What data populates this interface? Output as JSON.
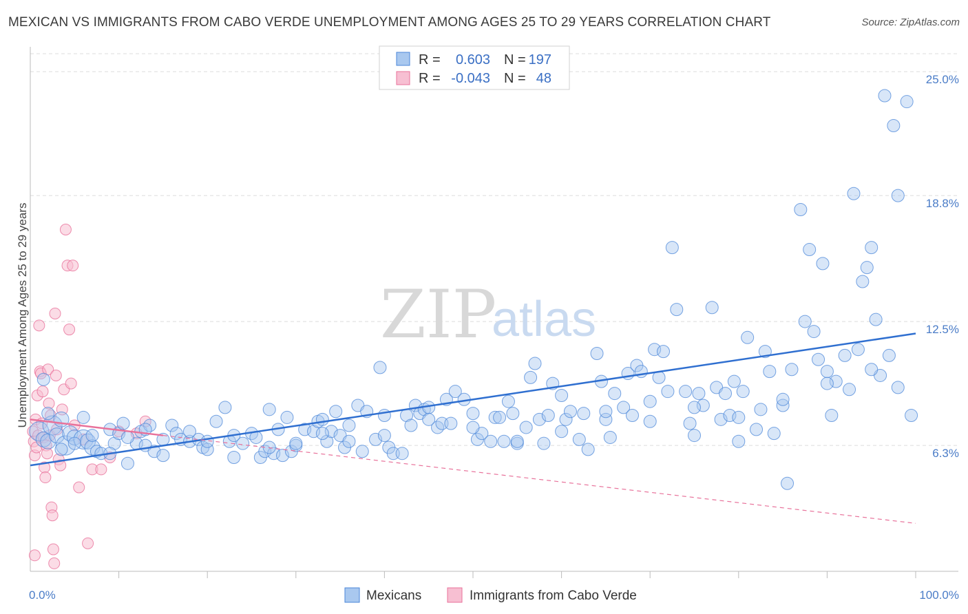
{
  "title": "MEXICAN VS IMMIGRANTS FROM CABO VERDE UNEMPLOYMENT AMONG AGES 25 TO 29 YEARS CORRELATION CHART",
  "source": "Source: ZipAtlas.com",
  "watermark": {
    "zip": "ZIP",
    "atlas": "atlas"
  },
  "colors": {
    "blue": "#4a86d8",
    "blue_fill": "#a9c8ef",
    "pink": "#e8719a",
    "pink_fill": "#f7bfd2",
    "tick_text": "#4a7cc7",
    "grid": "#d9d9d9"
  },
  "legend": {
    "rows": [
      {
        "r_label": "R =",
        "r_value": "0.603",
        "n_label": "N =",
        "n_value": "197"
      },
      {
        "r_label": "R =",
        "r_value": "-0.043",
        "n_label": "N =",
        "n_value": "48"
      }
    ]
  },
  "chart_data": {
    "type": "scatter",
    "title": "MEXICAN VS IMMIGRANTS FROM CABO VERDE UNEMPLOYMENT AMONG AGES 25 TO 29 YEARS CORRELATION CHART",
    "xlabel": "",
    "ylabel": "Unemployment Among Ages 25 to 29 years",
    "xlim": [
      0,
      100
    ],
    "ylim": [
      0,
      25.9
    ],
    "x_tick_labels": [
      "0.0%",
      "100.0%"
    ],
    "y_ticks": [
      6.3,
      12.5,
      18.8,
      25.0
    ],
    "y_tick_labels": [
      "6.3%",
      "12.5%",
      "18.8%",
      "25.0%"
    ],
    "grid": true,
    "legend_position": "top-center",
    "series": [
      {
        "name": "Mexicans",
        "color": "#4a86d8",
        "r": 0.603,
        "n": 197,
        "trend": {
          "x0": 0,
          "y0": 5.3,
          "x1": 100,
          "y1": 11.9
        },
        "points": [
          [
            1,
            7.0
          ],
          [
            1.5,
            6.6
          ],
          [
            2,
            6.5
          ],
          [
            2.5,
            7.3
          ],
          [
            3,
            6.8
          ],
          [
            3.5,
            7.6
          ],
          [
            4,
            6.3
          ],
          [
            4.5,
            6.9
          ],
          [
            5,
            6.7
          ],
          [
            6,
            6.6
          ],
          [
            6.5,
            6.5
          ],
          [
            7,
            6.2
          ],
          [
            7.5,
            6.0
          ],
          [
            8,
            5.9
          ],
          [
            9,
            7.1
          ],
          [
            9.5,
            6.4
          ],
          [
            10,
            6.9
          ],
          [
            10.5,
            7.4
          ],
          [
            11,
            5.4
          ],
          [
            12,
            6.4
          ],
          [
            12.5,
            7.0
          ],
          [
            13,
            6.3
          ],
          [
            13.5,
            7.3
          ],
          [
            14,
            6.0
          ],
          [
            15,
            6.6
          ],
          [
            16,
            7.3
          ],
          [
            16.5,
            6.9
          ],
          [
            17,
            6.6
          ],
          [
            18,
            6.5
          ],
          [
            19,
            6.6
          ],
          [
            19.5,
            6.2
          ],
          [
            20,
            6.1
          ],
          [
            21,
            7.5
          ],
          [
            22,
            8.2
          ],
          [
            22.5,
            6.5
          ],
          [
            23,
            5.7
          ],
          [
            24,
            6.4
          ],
          [
            25,
            6.9
          ],
          [
            25.5,
            6.7
          ],
          [
            26,
            5.7
          ],
          [
            26.5,
            6.0
          ],
          [
            27,
            8.1
          ],
          [
            27.5,
            5.9
          ],
          [
            28,
            7.1
          ],
          [
            28.5,
            5.8
          ],
          [
            29,
            7.7
          ],
          [
            29.5,
            6.0
          ],
          [
            30,
            6.3
          ],
          [
            31,
            7.1
          ],
          [
            32,
            7.0
          ],
          [
            32.5,
            7.5
          ],
          [
            33,
            7.6
          ],
          [
            33.5,
            6.5
          ],
          [
            34,
            7.0
          ],
          [
            34.5,
            8.0
          ],
          [
            35,
            6.8
          ],
          [
            35.5,
            6.2
          ],
          [
            36,
            6.5
          ],
          [
            37,
            8.3
          ],
          [
            37.5,
            6.0
          ],
          [
            38,
            8.0
          ],
          [
            39,
            6.6
          ],
          [
            39.5,
            10.2
          ],
          [
            40,
            7.8
          ],
          [
            40.5,
            6.2
          ],
          [
            41,
            5.9
          ],
          [
            42,
            5.9
          ],
          [
            42.5,
            7.8
          ],
          [
            43,
            7.3
          ],
          [
            43.5,
            8.3
          ],
          [
            44,
            7.9
          ],
          [
            44.5,
            8.1
          ],
          [
            45,
            8.2
          ],
          [
            46,
            7.2
          ],
          [
            46.5,
            7.4
          ],
          [
            47,
            8.6
          ],
          [
            47.5,
            7.4
          ],
          [
            48,
            9.0
          ],
          [
            49,
            8.6
          ],
          [
            50,
            7.9
          ],
          [
            50.5,
            6.6
          ],
          [
            51,
            6.9
          ],
          [
            52,
            6.5
          ],
          [
            52.5,
            7.7
          ],
          [
            53,
            7.7
          ],
          [
            53.5,
            6.5
          ],
          [
            54,
            8.5
          ],
          [
            54.5,
            7.9
          ],
          [
            55,
            6.4
          ],
          [
            56,
            7.2
          ],
          [
            56.5,
            9.7
          ],
          [
            57,
            10.4
          ],
          [
            57.5,
            7.6
          ],
          [
            58,
            6.4
          ],
          [
            58.5,
            7.8
          ],
          [
            59,
            9.4
          ],
          [
            60,
            8.8
          ],
          [
            60.5,
            7.6
          ],
          [
            61,
            8.0
          ],
          [
            62,
            6.6
          ],
          [
            62.5,
            7.9
          ],
          [
            63,
            6.1
          ],
          [
            64,
            10.9
          ],
          [
            64.5,
            9.5
          ],
          [
            65,
            7.6
          ],
          [
            65.5,
            6.7
          ],
          [
            66,
            8.9
          ],
          [
            67,
            8.2
          ],
          [
            67.5,
            9.9
          ],
          [
            68,
            7.8
          ],
          [
            68.5,
            10.3
          ],
          [
            69,
            10.0
          ],
          [
            70,
            8.5
          ],
          [
            70.5,
            11.1
          ],
          [
            71,
            9.7
          ],
          [
            71.5,
            11.0
          ],
          [
            72,
            9.0
          ],
          [
            72.5,
            16.2
          ],
          [
            73,
            13.1
          ],
          [
            74,
            9.0
          ],
          [
            74.5,
            7.4
          ],
          [
            75,
            6.8
          ],
          [
            75.5,
            8.9
          ],
          [
            76,
            8.3
          ],
          [
            77,
            13.2
          ],
          [
            77.5,
            9.2
          ],
          [
            78,
            7.6
          ],
          [
            78.5,
            8.9
          ],
          [
            79,
            7.8
          ],
          [
            79.5,
            9.5
          ],
          [
            80,
            6.5
          ],
          [
            80.5,
            9.0
          ],
          [
            81,
            11.7
          ],
          [
            82,
            7.1
          ],
          [
            82.5,
            8.1
          ],
          [
            83,
            11.0
          ],
          [
            83.5,
            10.0
          ],
          [
            84,
            6.9
          ],
          [
            85,
            8.3
          ],
          [
            85.5,
            4.4
          ],
          [
            86,
            10.1
          ],
          [
            87,
            18.1
          ],
          [
            87.5,
            12.5
          ],
          [
            88,
            16.1
          ],
          [
            88.5,
            12.0
          ],
          [
            89,
            10.6
          ],
          [
            89.5,
            15.4
          ],
          [
            90,
            10.0
          ],
          [
            90.5,
            7.8
          ],
          [
            91,
            9.5
          ],
          [
            92,
            10.8
          ],
          [
            92.5,
            9.1
          ],
          [
            93,
            18.9
          ],
          [
            93.5,
            11.1
          ],
          [
            94,
            14.5
          ],
          [
            94.5,
            15.2
          ],
          [
            95,
            16.2
          ],
          [
            95.5,
            12.6
          ],
          [
            96,
            9.8
          ],
          [
            96.5,
            23.8
          ],
          [
            97,
            10.8
          ],
          [
            97.5,
            22.3
          ],
          [
            98,
            18.8
          ],
          [
            99,
            23.5
          ],
          [
            99.5,
            7.8
          ],
          [
            1.5,
            9.6
          ],
          [
            2,
            7.9
          ],
          [
            3.5,
            6.1
          ],
          [
            5,
            6.4
          ],
          [
            6,
            7.7
          ],
          [
            7,
            6.8
          ],
          [
            9,
            5.9
          ],
          [
            11,
            6.7
          ],
          [
            13,
            7.1
          ],
          [
            15,
            5.8
          ],
          [
            18,
            7.0
          ],
          [
            20,
            6.5
          ],
          [
            23,
            6.8
          ],
          [
            27,
            6.2
          ],
          [
            30,
            6.4
          ],
          [
            33,
            6.9
          ],
          [
            36,
            7.3
          ],
          [
            40,
            6.8
          ],
          [
            45,
            7.6
          ],
          [
            50,
            7.2
          ],
          [
            55,
            6.5
          ],
          [
            60,
            7.0
          ],
          [
            65,
            8.0
          ],
          [
            70,
            7.5
          ],
          [
            75,
            8.2
          ],
          [
            80,
            7.7
          ],
          [
            85,
            8.6
          ],
          [
            90,
            9.4
          ],
          [
            95,
            10.1
          ],
          [
            98,
            9.2
          ]
        ]
      },
      {
        "name": "Immigrants from Cabo Verde",
        "color": "#e8719a",
        "r": -0.043,
        "n": 48,
        "trend": {
          "x0": 0,
          "y0": 7.6,
          "x1": 15,
          "y1": 6.8
        },
        "trend_dashed": {
          "x0": 15,
          "y0": 6.8,
          "x1": 100,
          "y1": 2.4
        },
        "points": [
          [
            0.3,
            7.0
          ],
          [
            0.4,
            6.5
          ],
          [
            0.5,
            5.8
          ],
          [
            0.6,
            7.6
          ],
          [
            0.7,
            6.2
          ],
          [
            0.8,
            8.8
          ],
          [
            0.9,
            6.8
          ],
          [
            1.0,
            12.3
          ],
          [
            1.1,
            10.0
          ],
          [
            1.2,
            9.9
          ],
          [
            1.3,
            7.4
          ],
          [
            1.4,
            9.0
          ],
          [
            1.5,
            6.7
          ],
          [
            1.6,
            5.2
          ],
          [
            1.7,
            4.7
          ],
          [
            1.8,
            6.3
          ],
          [
            1.9,
            5.9
          ],
          [
            2.0,
            10.1
          ],
          [
            2.1,
            8.4
          ],
          [
            2.2,
            6.8
          ],
          [
            2.3,
            7.8
          ],
          [
            2.4,
            3.2
          ],
          [
            2.5,
            2.8
          ],
          [
            2.6,
            1.1
          ],
          [
            2.7,
            0.4
          ],
          [
            2.8,
            12.9
          ],
          [
            2.9,
            9.8
          ],
          [
            3.0,
            7.1
          ],
          [
            3.2,
            5.6
          ],
          [
            3.4,
            5.3
          ],
          [
            3.6,
            8.1
          ],
          [
            3.8,
            9.1
          ],
          [
            4.0,
            17.1
          ],
          [
            4.2,
            15.3
          ],
          [
            4.4,
            12.1
          ],
          [
            4.6,
            9.4
          ],
          [
            4.8,
            15.3
          ],
          [
            5.0,
            7.3
          ],
          [
            5.5,
            4.2
          ],
          [
            6.0,
            6.6
          ],
          [
            6.5,
            1.4
          ],
          [
            7.0,
            5.1
          ],
          [
            8.0,
            5.1
          ],
          [
            9.0,
            5.7
          ],
          [
            10.0,
            7.0
          ],
          [
            12.0,
            6.9
          ],
          [
            13.0,
            7.5
          ],
          [
            0.5,
            0.8
          ]
        ]
      }
    ]
  },
  "bottom_legend": {
    "mexicans": "Mexicans",
    "cabo_verde": "Immigrants from Cabo Verde"
  }
}
